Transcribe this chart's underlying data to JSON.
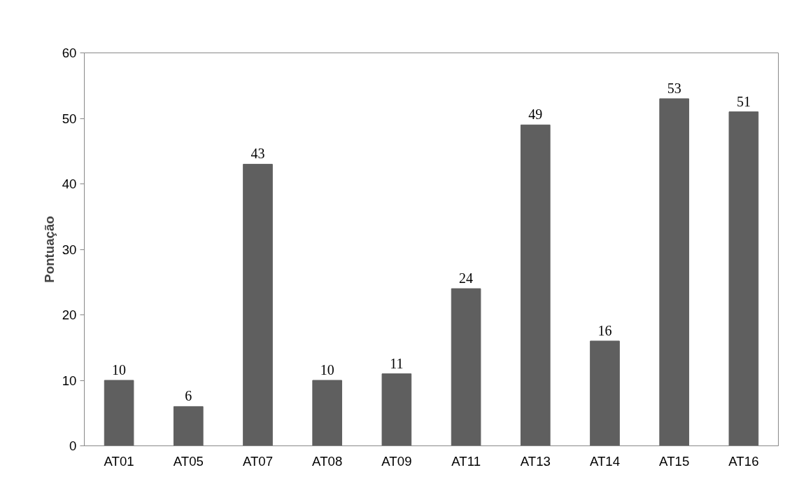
{
  "chart_data": {
    "type": "bar",
    "ylabel": "Pontuação",
    "categories": [
      "AT01",
      "AT05",
      "AT07",
      "AT08",
      "AT09",
      "AT11",
      "AT13",
      "AT14",
      "AT15",
      "AT16"
    ],
    "values": [
      10,
      6,
      43,
      10,
      11,
      24,
      49,
      16,
      53,
      51
    ],
    "color": "#5f5f5f",
    "ylim": [
      0,
      60
    ],
    "yticks": [
      0,
      10,
      20,
      30,
      40,
      50,
      60
    ],
    "grid": false,
    "data_labels": true
  }
}
